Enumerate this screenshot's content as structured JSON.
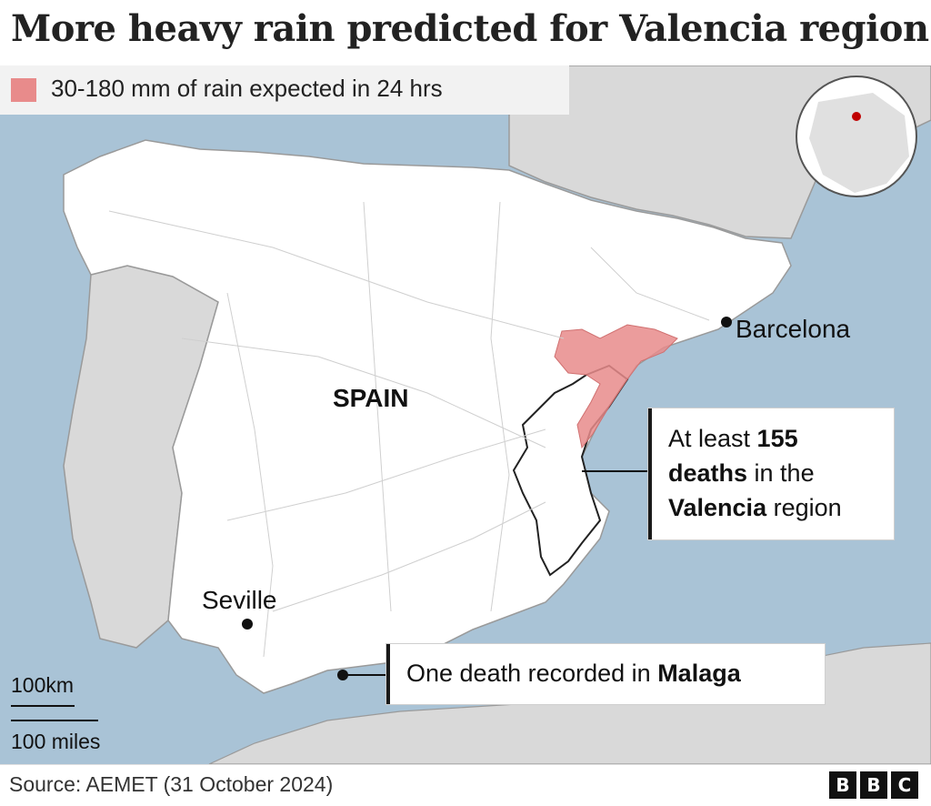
{
  "title": "More heavy rain predicted for Valencia region",
  "legend": {
    "label": "30-180 mm of rain expected in 24 hrs",
    "color": "#e88b8b"
  },
  "colors": {
    "sea": "#a9c3d6",
    "land_spain": "#ffffff",
    "land_other": "#d9d9d9",
    "rain": "#e88b8b",
    "marker": "#111111"
  },
  "labels": {
    "country": "SPAIN",
    "city_barcelona": "Barcelona",
    "city_seville": "Seville"
  },
  "callouts": {
    "valencia": {
      "p1": "At least ",
      "count": "155",
      "p2": "deaths",
      "p3": " in the",
      "region": "Valencia",
      "p4": " region"
    },
    "malaga": {
      "p1": "One death recorded in ",
      "city": "Malaga"
    }
  },
  "scale": {
    "km": "100km",
    "miles": "100 miles"
  },
  "source": "Source: AEMET (31 October 2024)",
  "logo": [
    "B",
    "B",
    "C"
  ],
  "icons": {
    "locator_globe": "globe-locator-icon",
    "city_marker": "dot-marker-icon"
  }
}
